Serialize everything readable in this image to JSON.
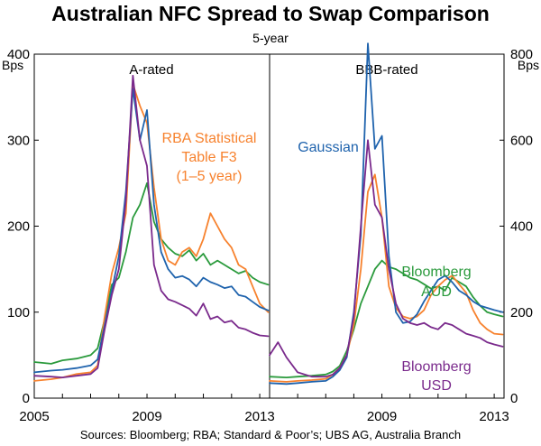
{
  "title": "Australian NFC Spread to Swap Comparison",
  "subtitle": "5-year",
  "source": "Sources: Bloomberg; RBA; Standard & Poor’s; UBS AG, Australia Branch",
  "chart_data": [
    {
      "type": "line",
      "panel_title": "A-rated",
      "ylabel": "Bps",
      "ylim": [
        0,
        400
      ],
      "yticks": [
        0,
        100,
        200,
        300,
        400
      ],
      "xlim": [
        2005,
        2013.35
      ],
      "xticks": [
        2005,
        2009,
        2013
      ],
      "annotations": [
        {
          "lines": [
            "RBA Statistical",
            "Table F3",
            "(1–5 year)"
          ],
          "series": "RBA Statistical Table F3 (1–5 year)",
          "color": "#f7822e"
        }
      ],
      "series": [
        {
          "name": "Bloomberg AUD",
          "color": "#2a9a3c",
          "x": [
            2005,
            2005.6,
            2006,
            2006.5,
            2007,
            2007.25,
            2007.5,
            2007.75,
            2008,
            2008.25,
            2008.5,
            2008.75,
            2009,
            2009.25,
            2009.5,
            2009.75,
            2010,
            2010.25,
            2010.5,
            2010.75,
            2011,
            2011.25,
            2011.5,
            2011.75,
            2012,
            2012.25,
            2012.5,
            2012.75,
            2013,
            2013.3
          ],
          "values": [
            42,
            40,
            44,
            46,
            50,
            58,
            92,
            132,
            140,
            170,
            210,
            225,
            250,
            205,
            185,
            175,
            168,
            165,
            172,
            160,
            168,
            155,
            160,
            155,
            150,
            145,
            148,
            140,
            135,
            132
          ]
        },
        {
          "name": "RBA Statistical Table F3 (1–5 year)",
          "color": "#f7822e",
          "x": [
            2005,
            2005.6,
            2006,
            2006.5,
            2007,
            2007.25,
            2007.5,
            2007.75,
            2008,
            2008.25,
            2008.5,
            2008.75,
            2009,
            2009.25,
            2009.5,
            2009.75,
            2010,
            2010.25,
            2010.5,
            2010.75,
            2011,
            2011.25,
            2011.5,
            2011.75,
            2012,
            2012.25,
            2012.5,
            2012.75,
            2013,
            2013.3
          ],
          "values": [
            20,
            22,
            24,
            28,
            30,
            38,
            95,
            145,
            175,
            215,
            365,
            340,
            320,
            245,
            185,
            160,
            155,
            170,
            175,
            165,
            185,
            215,
            200,
            185,
            175,
            155,
            150,
            130,
            110,
            100
          ]
        },
        {
          "name": "UBS AG",
          "color": "#1f63ad",
          "x": [
            2005,
            2005.6,
            2006,
            2006.5,
            2007,
            2007.25,
            2007.5,
            2007.75,
            2008,
            2008.25,
            2008.5,
            2008.75,
            2009,
            2009.25,
            2009.5,
            2009.75,
            2010,
            2010.25,
            2010.5,
            2010.75,
            2011,
            2011.25,
            2011.5,
            2011.75,
            2012,
            2012.25,
            2012.5,
            2012.75,
            2013,
            2013.3
          ],
          "values": [
            30,
            32,
            33,
            35,
            38,
            45,
            85,
            125,
            165,
            240,
            360,
            300,
            335,
            225,
            170,
            150,
            140,
            142,
            138,
            130,
            140,
            135,
            132,
            128,
            130,
            120,
            118,
            112,
            106,
            102
          ]
        },
        {
          "name": "Bloomberg USD",
          "color": "#7a2a8c",
          "x": [
            2005,
            2005.6,
            2006,
            2006.5,
            2007,
            2007.25,
            2007.5,
            2007.75,
            2008,
            2008.25,
            2008.5,
            2008.75,
            2009,
            2009.25,
            2009.5,
            2009.75,
            2010,
            2010.25,
            2010.5,
            2010.75,
            2011,
            2011.25,
            2011.5,
            2011.75,
            2012,
            2012.25,
            2012.5,
            2012.75,
            2013,
            2013.3
          ],
          "values": [
            26,
            25,
            24,
            26,
            28,
            35,
            80,
            120,
            150,
            230,
            375,
            300,
            270,
            155,
            125,
            115,
            112,
            108,
            104,
            96,
            110,
            92,
            95,
            88,
            90,
            82,
            80,
            76,
            73,
            72
          ]
        }
      ]
    },
    {
      "type": "line",
      "panel_title": "BBB-rated",
      "ylabel": "Bps",
      "ylim": [
        0,
        800
      ],
      "yticks": [
        0,
        200,
        400,
        600,
        800
      ],
      "xlim": [
        2005,
        2013.35
      ],
      "xticks": [
        2009,
        2013
      ],
      "annotations": [
        {
          "lines": [
            "Gaussian"
          ],
          "series": "Gaussian",
          "color": "#1f63ad"
        },
        {
          "lines": [
            "Bloomberg",
            "AUD"
          ],
          "series": "Bloomberg AUD",
          "color": "#2a9a3c"
        },
        {
          "lines": [
            "Bloomberg",
            "USD"
          ],
          "series": "Bloomberg USD",
          "color": "#7a2a8c"
        }
      ],
      "series": [
        {
          "name": "Bloomberg AUD",
          "color": "#2a9a3c",
          "x": [
            2005,
            2005.6,
            2006,
            2006.5,
            2007,
            2007.25,
            2007.5,
            2007.75,
            2008,
            2008.25,
            2008.5,
            2008.75,
            2009,
            2009.25,
            2009.5,
            2009.75,
            2010,
            2010.25,
            2010.5,
            2010.75,
            2011,
            2011.25,
            2011.5,
            2011.75,
            2012,
            2012.25,
            2012.5,
            2012.75,
            2013,
            2013.3
          ],
          "values": [
            50,
            48,
            50,
            52,
            55,
            62,
            75,
            110,
            160,
            220,
            260,
            300,
            320,
            305,
            300,
            290,
            280,
            275,
            265,
            255,
            260,
            250,
            280,
            270,
            260,
            235,
            215,
            200,
            195,
            190
          ]
        },
        {
          "name": "RBA Statistical Table F3",
          "color": "#f7822e",
          "x": [
            2005,
            2005.6,
            2006,
            2006.5,
            2007,
            2007.25,
            2007.5,
            2007.75,
            2008,
            2008.25,
            2008.5,
            2008.75,
            2009,
            2009.25,
            2009.5,
            2009.75,
            2010,
            2010.25,
            2010.5,
            2010.75,
            2011,
            2011.25,
            2011.5,
            2011.75,
            2012,
            2012.25,
            2012.5,
            2012.75,
            2013,
            2013.3
          ],
          "values": [
            40,
            38,
            40,
            42,
            45,
            55,
            70,
            100,
            170,
            300,
            480,
            520,
            420,
            260,
            210,
            190,
            185,
            190,
            205,
            240,
            260,
            275,
            285,
            265,
            245,
            205,
            175,
            160,
            150,
            148
          ]
        },
        {
          "name": "Gaussian",
          "color": "#1f63ad",
          "x": [
            2005,
            2005.6,
            2006,
            2006.5,
            2007,
            2007.25,
            2007.5,
            2007.75,
            2008,
            2008.25,
            2008.5,
            2008.75,
            2009,
            2009.25,
            2009.5,
            2009.75,
            2010,
            2010.25,
            2010.5,
            2010.75,
            2011,
            2011.25,
            2011.5,
            2011.75,
            2012,
            2012.25,
            2012.5,
            2012.75,
            2013,
            2013.3
          ],
          "values": [
            35,
            33,
            35,
            38,
            40,
            50,
            65,
            95,
            200,
            380,
            825,
            580,
            610,
            330,
            200,
            175,
            178,
            195,
            225,
            250,
            275,
            285,
            270,
            250,
            240,
            225,
            215,
            210,
            205,
            200
          ]
        },
        {
          "name": "Bloomberg USD",
          "color": "#7a2a8c",
          "x": [
            2005,
            2005.3,
            2005.6,
            2006,
            2006.5,
            2007,
            2007.25,
            2007.5,
            2007.75,
            2008,
            2008.25,
            2008.5,
            2008.75,
            2009,
            2009.25,
            2009.5,
            2009.75,
            2010,
            2010.25,
            2010.5,
            2010.75,
            2011,
            2011.25,
            2011.5,
            2011.75,
            2012,
            2012.25,
            2012.5,
            2012.75,
            2013,
            2013.3
          ],
          "values": [
            100,
            130,
            95,
            60,
            50,
            50,
            55,
            70,
            100,
            190,
            400,
            600,
            450,
            420,
            300,
            220,
            185,
            175,
            170,
            175,
            165,
            160,
            175,
            170,
            160,
            150,
            145,
            140,
            130,
            125,
            120
          ]
        }
      ]
    }
  ]
}
